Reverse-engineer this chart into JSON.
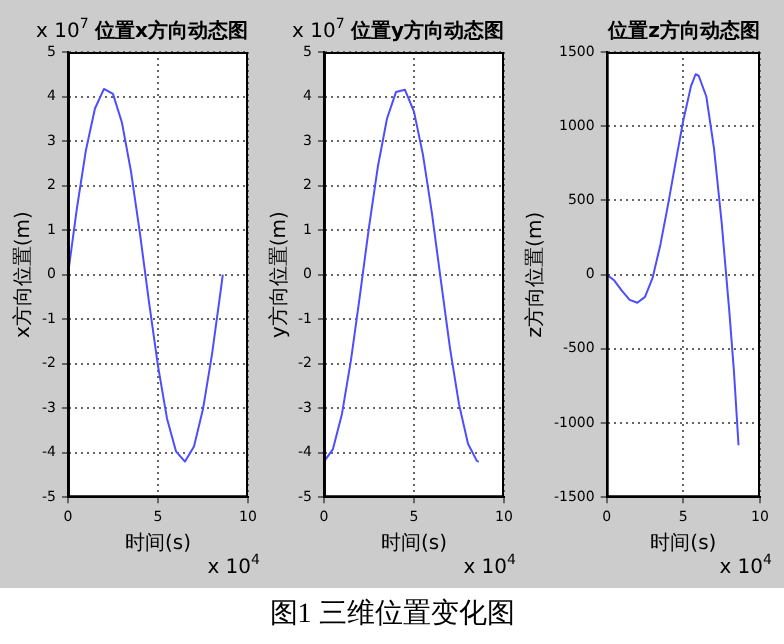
{
  "chart_data": [
    {
      "type": "line",
      "title": "位置x方向动态图",
      "xlabel": "时间(s)",
      "ylabel": "x方向位置(m)",
      "x": [
        0,
        0.5,
        1,
        1.5,
        2,
        2.5,
        3,
        3.5,
        4,
        4.5,
        5,
        5.5,
        6,
        6.5,
        7,
        7.5,
        8,
        8.5,
        8.6
      ],
      "series": [
        {
          "color": "#4d4dff",
          "values": [
            0,
            1.5,
            2.8,
            3.73,
            4.17,
            4.06,
            3.41,
            2.32,
            0.92,
            -0.61,
            -2.05,
            -3.23,
            -3.97,
            -4.2,
            -3.86,
            -3.02,
            -1.79,
            -0.31,
            0
          ]
        }
      ],
      "xlim": [
        0,
        10
      ],
      "xticks": [
        0,
        5,
        10
      ],
      "ylim": [
        -5,
        5
      ],
      "yticks": [
        -5,
        -4,
        -3,
        -2,
        -1,
        0,
        1,
        2,
        3,
        4,
        5
      ],
      "grid": true,
      "legend": false,
      "marker": "none",
      "line_style": "solid",
      "annotations": [
        "x 10$^{7}$",
        "x 10$^{4}$"
      ]
    },
    {
      "type": "line",
      "title": "位置y方向动态图",
      "xlabel": "时间(s)",
      "ylabel": "y方向位置(m)",
      "x": [
        0,
        0.5,
        1,
        1.5,
        2,
        2.5,
        3,
        3.5,
        4,
        4.5,
        5,
        5.5,
        6,
        6.5,
        7,
        7.5,
        8,
        8.5,
        8.6
      ],
      "series": [
        {
          "color": "#4d4dff",
          "values": [
            -4.2,
            -3.92,
            -3.13,
            -1.92,
            -0.46,
            1.06,
            2.44,
            3.5,
            4.1,
            4.15,
            3.66,
            2.69,
            1.37,
            -0.15,
            -1.65,
            -2.91,
            -3.8,
            -4.19,
            -4.2
          ]
        }
      ],
      "xlim": [
        0,
        10
      ],
      "xticks": [
        0,
        5,
        10
      ],
      "ylim": [
        -5,
        5
      ],
      "yticks": [
        -5,
        -4,
        -3,
        -2,
        -1,
        0,
        1,
        2,
        3,
        4,
        5
      ],
      "grid": true,
      "legend": false,
      "marker": "none",
      "line_style": "solid",
      "annotations": [
        "x 10$^{7}$",
        "x 10$^{4}$"
      ]
    },
    {
      "type": "line",
      "title": "位置z方向动态图",
      "xlabel": "时间(s)",
      "ylabel": "z方向位置(m)",
      "x": [
        0,
        0.5,
        1,
        1.5,
        2,
        2.5,
        3,
        3.5,
        4,
        4.5,
        5,
        5.5,
        5.8,
        6,
        6.5,
        7,
        7.5,
        8,
        8.3,
        8.6
      ],
      "series": [
        {
          "color": "#4d4dff",
          "values": [
            0,
            -40,
            -110,
            -170,
            -190,
            -150,
            -20,
            200,
            470,
            760,
            1040,
            1270,
            1350,
            1340,
            1200,
            850,
            350,
            -250,
            -650,
            -1150
          ]
        }
      ],
      "xlim": [
        0,
        10
      ],
      "xticks": [
        0,
        5,
        10
      ],
      "ylim": [
        -1500,
        1500
      ],
      "yticks": [
        -1500,
        -1000,
        -500,
        0,
        500,
        1000,
        1500
      ],
      "grid": true,
      "legend": false,
      "marker": "none",
      "line_style": "solid",
      "annotations": [
        "x 10$^{4}$",
        "图1 三维位置变化图"
      ]
    }
  ]
}
